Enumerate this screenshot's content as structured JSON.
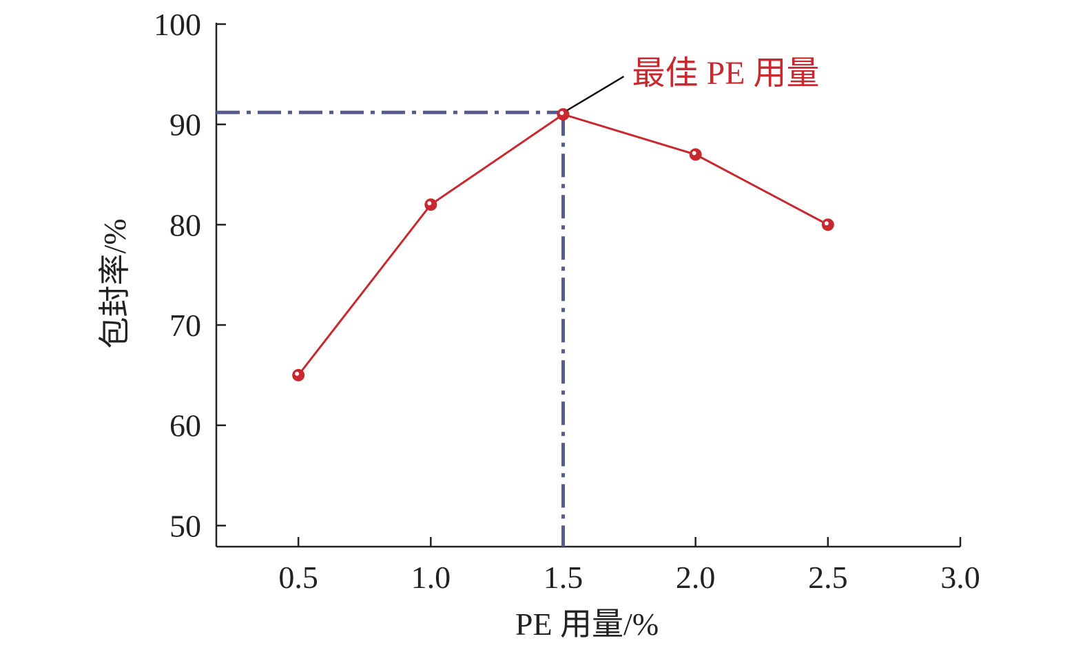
{
  "chart_data": {
    "type": "line",
    "title": "",
    "xlabel": "PE 用量/%",
    "ylabel": "包封率/%",
    "x": [
      0.5,
      1.0,
      1.5,
      2.0,
      2.5
    ],
    "series": [
      {
        "name": "包封率",
        "values": [
          65,
          82,
          91,
          87,
          80
        ],
        "color": "#c8282e"
      }
    ],
    "xlim": [
      0.19,
      3.0
    ],
    "ylim": [
      47.9,
      100
    ],
    "xticks": [
      0.5,
      1.0,
      1.5,
      2.0,
      2.5,
      3.0
    ],
    "xtick_labels": [
      "0.5",
      "1.0",
      "1.5",
      "2.0",
      "2.5",
      "3.0"
    ],
    "yticks": [
      50,
      60,
      70,
      80,
      90,
      100
    ],
    "ytick_labels": [
      "50",
      "60",
      "70",
      "80",
      "90",
      "100"
    ],
    "grid": false,
    "reference_point": {
      "x": 1.5,
      "y": 91.2,
      "color": "#565a8e"
    },
    "annotation": {
      "text": "最佳 PE 用量",
      "x": 1.5,
      "y": 91,
      "color": "#c8282e"
    }
  }
}
